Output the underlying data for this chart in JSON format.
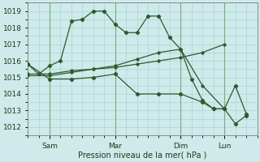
{
  "xlabel": "Pression niveau de la mer( hPa )",
  "bg_color": "#ceeaea",
  "grid_color": "#aed4d4",
  "line_color": "#2d5a2d",
  "ylim": [
    1011.5,
    1019.5
  ],
  "yticks": [
    1012,
    1013,
    1014,
    1015,
    1016,
    1017,
    1018,
    1019
  ],
  "xtick_labels": [
    "Sam",
    "Mar",
    "Dim",
    "Lun"
  ],
  "xtick_positions": [
    8,
    32,
    56,
    72
  ],
  "xlim": [
    0,
    84
  ],
  "vlines_x": [
    8,
    32,
    56,
    72
  ],
  "series": [
    {
      "x": [
        0,
        8,
        16,
        24,
        32,
        40,
        48,
        56,
        64,
        72
      ],
      "y": [
        1015.2,
        1015.2,
        1015.4,
        1015.5,
        1015.6,
        1015.8,
        1016.0,
        1016.2,
        1016.5,
        1017.0
      ]
    },
    {
      "x": [
        0,
        8,
        16,
        24,
        32,
        40,
        48,
        56,
        64,
        72
      ],
      "y": [
        1015.1,
        1015.1,
        1015.3,
        1015.5,
        1015.7,
        1016.1,
        1016.5,
        1016.7,
        1014.5,
        1013.1
      ]
    },
    {
      "x": [
        0,
        4,
        8,
        12,
        16,
        20,
        24,
        28,
        32,
        36,
        40,
        44,
        48,
        52,
        56,
        60,
        64,
        68,
        72,
        76,
        80
      ],
      "y": [
        1015.8,
        1015.2,
        1015.7,
        1016.0,
        1018.4,
        1018.5,
        1019.0,
        1019.0,
        1018.2,
        1017.7,
        1017.7,
        1018.7,
        1018.7,
        1017.4,
        1016.7,
        1014.9,
        1013.6,
        1013.1,
        1013.1,
        1014.5,
        1012.8
      ]
    },
    {
      "x": [
        0,
        8,
        16,
        24,
        32,
        40,
        48,
        56,
        64,
        68,
        72,
        76,
        80
      ],
      "y": [
        1015.8,
        1014.9,
        1014.9,
        1015.0,
        1015.2,
        1014.0,
        1014.0,
        1014.0,
        1013.5,
        1013.1,
        1013.1,
        1012.2,
        1012.7
      ]
    }
  ]
}
